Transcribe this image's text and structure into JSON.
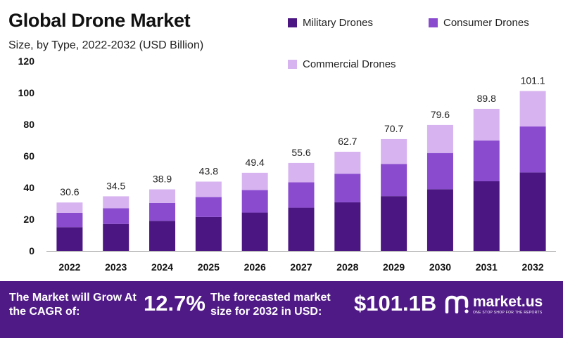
{
  "title": "Global Drone Market",
  "subtitle": "Size, by Type, 2022-2032 (USD Billion)",
  "banner": {
    "grow_text": "The Market will Grow At the CAGR of:",
    "cagr_value": "12.7%",
    "forecast_text": "The forecasted market size for 2032 in USD:",
    "forecast_value": "$101.1B",
    "logo_text": "market.us",
    "logo_tagline": "ONE STOP SHOP FOR THE REPORTS"
  },
  "colors": {
    "military": "#4b1682",
    "consumer": "#8a4bcf",
    "commercial": "#d7b4f0",
    "banner": "#4f1a86"
  },
  "chart_data": {
    "type": "bar",
    "stacked": true,
    "title": "Global Drone Market",
    "subtitle": "Size, by Type, 2022-2032 (USD Billion)",
    "categories": [
      "2022",
      "2023",
      "2024",
      "2025",
      "2026",
      "2027",
      "2028",
      "2029",
      "2030",
      "2031",
      "2032"
    ],
    "series": [
      {
        "name": "Military Drones",
        "values": [
          15.0,
          17.0,
          19.0,
          21.4,
          24.2,
          27.3,
          30.7,
          34.6,
          39.0,
          44.0,
          49.6
        ]
      },
      {
        "name": "Consumer Drones",
        "values": [
          9.0,
          10.0,
          11.3,
          12.7,
          14.3,
          16.1,
          18.1,
          20.4,
          22.9,
          25.8,
          29.1
        ]
      },
      {
        "name": "Commercial Drones",
        "values": [
          6.6,
          7.5,
          8.6,
          9.7,
          10.9,
          12.2,
          13.9,
          15.7,
          17.7,
          20.0,
          22.4
        ]
      }
    ],
    "totals": [
      "30.6",
      "34.5",
      "38.9",
      "43.8",
      "49.4",
      "55.6",
      "62.7",
      "70.7",
      "79.6",
      "89.8",
      "101.1"
    ],
    "ylim": [
      0,
      120
    ],
    "yticks": [
      "0",
      "20",
      "40",
      "60",
      "80",
      "100",
      "120"
    ],
    "grid": false,
    "legend_position": "top-right"
  }
}
